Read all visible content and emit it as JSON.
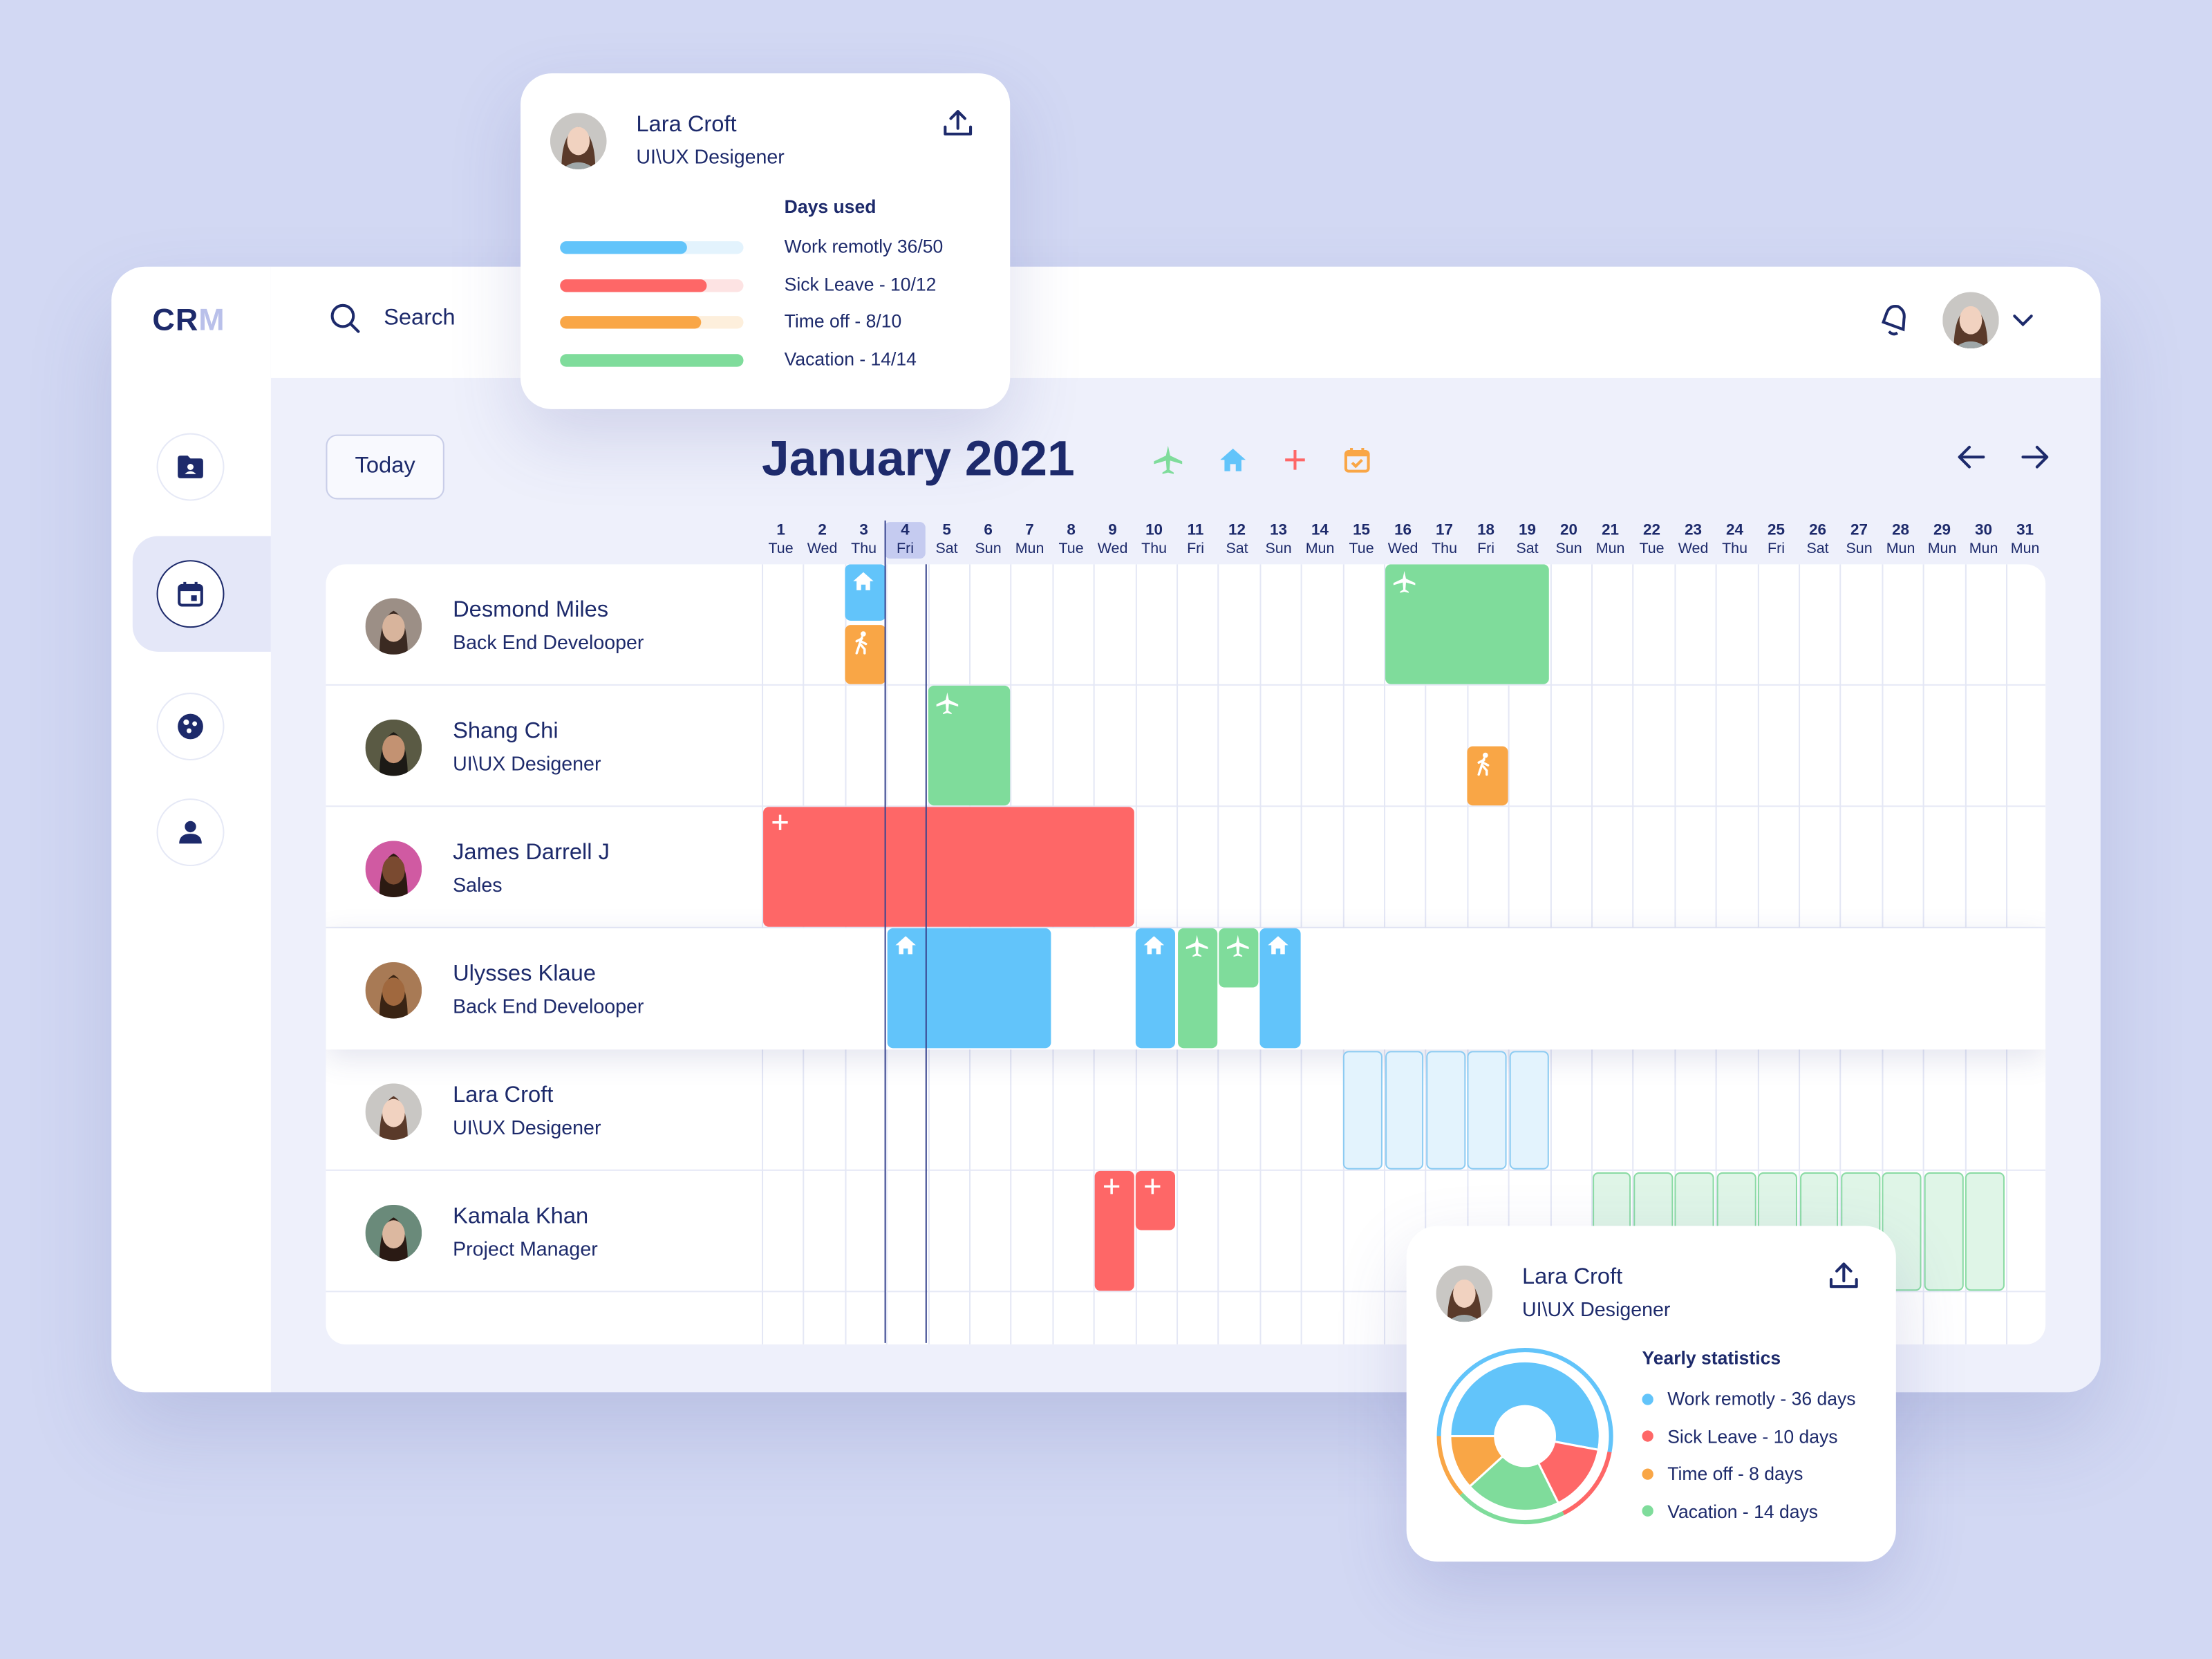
{
  "app": {
    "logo": {
      "c": "C",
      "r": "R",
      "m": "M"
    },
    "search_label": "Search",
    "today_label": "Today",
    "month_title": "January 2021"
  },
  "colors": {
    "work_remote": "#62c4fa",
    "sick_leave": "#fe6767",
    "time_off": "#f9a646",
    "vacation": "#7fdc9b",
    "primary": "#1d2a6b"
  },
  "days": [
    {
      "n": "1",
      "d": "Tue"
    },
    {
      "n": "2",
      "d": "Wed"
    },
    {
      "n": "3",
      "d": "Thu"
    },
    {
      "n": "4",
      "d": "Fri"
    },
    {
      "n": "5",
      "d": "Sat"
    },
    {
      "n": "6",
      "d": "Sun"
    },
    {
      "n": "7",
      "d": "Mun"
    },
    {
      "n": "8",
      "d": "Tue"
    },
    {
      "n": "9",
      "d": "Wed"
    },
    {
      "n": "10",
      "d": "Thu"
    },
    {
      "n": "11",
      "d": "Fri"
    },
    {
      "n": "12",
      "d": "Sat"
    },
    {
      "n": "13",
      "d": "Sun"
    },
    {
      "n": "14",
      "d": "Mun"
    },
    {
      "n": "15",
      "d": "Tue"
    },
    {
      "n": "16",
      "d": "Wed"
    },
    {
      "n": "17",
      "d": "Thu"
    },
    {
      "n": "18",
      "d": "Fri"
    },
    {
      "n": "19",
      "d": "Sat"
    },
    {
      "n": "20",
      "d": "Sun"
    },
    {
      "n": "21",
      "d": "Mun"
    },
    {
      "n": "22",
      "d": "Tue"
    },
    {
      "n": "23",
      "d": "Wed"
    },
    {
      "n": "24",
      "d": "Thu"
    },
    {
      "n": "25",
      "d": "Fri"
    },
    {
      "n": "26",
      "d": "Sat"
    },
    {
      "n": "27",
      "d": "Sun"
    },
    {
      "n": "28",
      "d": "Mun"
    },
    {
      "n": "29",
      "d": "Mun"
    },
    {
      "n": "30",
      "d": "Mun"
    },
    {
      "n": "31",
      "d": "Mun"
    }
  ],
  "today_day": "4",
  "employees": [
    {
      "name": "Desmond Miles",
      "role": "Back End Develooper"
    },
    {
      "name": "Shang Chi",
      "role": "UI\\UX Desigener"
    },
    {
      "name": "James Darrell J",
      "role": "Sales"
    },
    {
      "name": "Ulysses Klaue",
      "role": "Back End Develooper"
    },
    {
      "name": "Lara Croft",
      "role": "UI\\UX Desigener"
    },
    {
      "name": "Kamala Khan",
      "role": "Project Manager"
    }
  ],
  "popup_days": {
    "name": "Lara Croft",
    "role": "UI\\UX Desigener",
    "section": "Days used",
    "items": [
      {
        "label": "Work remotly 36/50",
        "used": 36,
        "total": 50,
        "color": "#62c4fa",
        "track": "#e3f3fd"
      },
      {
        "label": "Sick Leave - 10/12",
        "used": 10,
        "total": 12,
        "color": "#fe6767",
        "track": "#fde3e3"
      },
      {
        "label": "Time off - 8/10",
        "used": 8,
        "total": 10,
        "color": "#f9a646",
        "track": "#fdefdc"
      },
      {
        "label": "Vacation - 14/14",
        "used": 14,
        "total": 14,
        "color": "#7fdc9b",
        "track": "#dff5e7"
      }
    ]
  },
  "popup_yearly": {
    "name": "Lara Croft",
    "role": "UI\\UX Desigener",
    "section": "Yearly statistics",
    "items": [
      {
        "label": "Work remotly - 36 days",
        "value": 36,
        "color": "#62c4fa"
      },
      {
        "label": "Sick Leave - 10 days",
        "value": 10,
        "color": "#fe6767"
      },
      {
        "label": "Time off - 8 days",
        "value": 8,
        "color": "#f9a646"
      },
      {
        "label": "Vacation - 14 days",
        "value": 14,
        "color": "#7fdc9b"
      }
    ]
  }
}
